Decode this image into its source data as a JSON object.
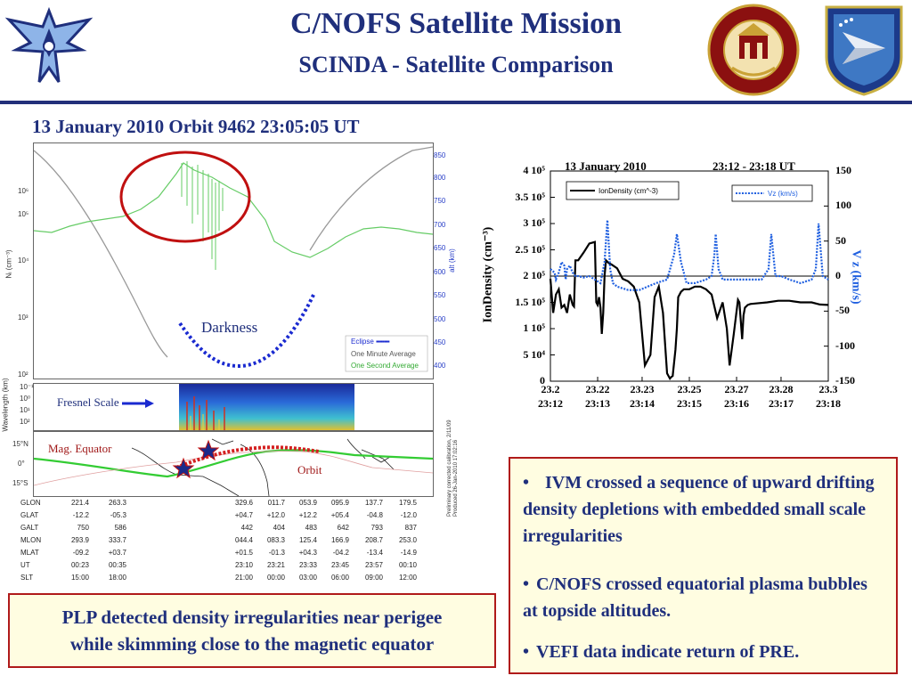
{
  "header": {
    "title": "C/NOFS Satellite Mission",
    "subtitle": "SCINDA - Satellite Comparison",
    "date_heading": "13 January 2010  Orbit 9462  23:05:05 UT"
  },
  "colors": {
    "title_blue": "#1f2f7c",
    "box_border": "#b01a1a",
    "box_fill": "#fffde1",
    "orbit_red": "#d42020",
    "eclipse_blue": "#1a2ad0",
    "one_minute_gray": "#999999",
    "one_second_green": "#55cc55"
  },
  "logos": {
    "left": "air-force-wings-logo",
    "middle": "boston-college-seal-logo",
    "right": "afrl-shield-logo"
  },
  "left_panel": {
    "y_axis_ticks": [
      "10⁶",
      "10⁵",
      "10⁴",
      "10³",
      "10²"
    ],
    "y_label": "Nᵢ (cm⁻³)",
    "alt_axis_ticks": [
      "850",
      "800",
      "750",
      "700",
      "650",
      "600",
      "550",
      "500",
      "450",
      "400"
    ],
    "alt_label": "alt (km)",
    "darkness_label": "Darkness",
    "legend": {
      "eclipse": "Eclipse",
      "one_minute": "One Minute Average",
      "one_second": "One Second Average"
    },
    "wavelength_label": "Wavelength (km)",
    "wavelength_ticks": [
      "10⁻¹",
      "10⁰",
      "10¹",
      "10²"
    ],
    "fresnel_label": "Fresnel Scale",
    "map_ticks": [
      "15°N",
      "0°",
      "15°S"
    ],
    "mag_equator_label": "Mag. Equator",
    "orbit_label": "Orbit",
    "calibration_note": [
      "Preliminary corrected calibration, 2/11/09",
      "Produced 26-Jan-2010 17:02:16"
    ],
    "table": {
      "rows": [
        {
          "name": "GLON",
          "values": [
            "221.4",
            "263.3",
            "329.6",
            "011.7",
            "053.9",
            "095.9",
            "137.7",
            "179.5"
          ]
        },
        {
          "name": "GLAT",
          "values": [
            "-12.2",
            "-05.3",
            "+04.7",
            "+12.0",
            "+12.2",
            "+05.4",
            "-04.8",
            "-12.0"
          ]
        },
        {
          "name": "GALT",
          "values": [
            "750",
            "586",
            "442",
            "404",
            "483",
            "642",
            "793",
            "837"
          ]
        },
        {
          "name": "MLON",
          "values": [
            "293.9",
            "333.7",
            "044.4",
            "083.3",
            "125.4",
            "166.9",
            "208.7",
            "253.0"
          ]
        },
        {
          "name": "MLAT",
          "values": [
            "-09.2",
            "+03.7",
            "+01.5",
            "-01.3",
            "+04.3",
            "-04.2",
            "-13.4",
            "-14.9"
          ]
        },
        {
          "name": "UT",
          "values": [
            "00:23",
            "00:35",
            "23:10",
            "23:21",
            "23:33",
            "23:45",
            "23:57",
            "00:10"
          ]
        },
        {
          "name": "SLT",
          "values": [
            "15:00",
            "18:00",
            "21:00",
            "00:00",
            "03:00",
            "06:00",
            "09:00",
            "12:00"
          ]
        }
      ]
    }
  },
  "chart_data": {
    "type": "line",
    "title": "13 January 2010",
    "time_range_label": "23:12 - 23:18 UT",
    "ylabel": "IonDensity (cm⁻³)",
    "y2label": "V z (km/s)",
    "ylim": [
      0,
      400000
    ],
    "y2lim": [
      -150,
      150
    ],
    "xlim": [
      23.2,
      23.3
    ],
    "y_ticks": [
      "4 10⁵",
      "3.5 10⁵",
      "3 10⁵",
      "2.5 10⁵",
      "2 10⁵",
      "1.5 10⁵",
      "1 10⁵",
      "5 10⁴",
      "0"
    ],
    "y_tick_values": [
      400000,
      350000,
      300000,
      250000,
      200000,
      150000,
      100000,
      50000,
      0
    ],
    "y2_ticks": [
      "150",
      "100",
      "50",
      "0",
      "-50",
      "-100",
      "-150"
    ],
    "y2_tick_values": [
      150,
      100,
      50,
      0,
      -50,
      -100,
      -150
    ],
    "x_ticks": [
      "23.2",
      "23.22",
      "23.23",
      "23.25",
      "23.27",
      "23.28",
      "23.3"
    ],
    "x_tick_values": [
      23.2,
      23.217,
      23.233,
      23.25,
      23.267,
      23.283,
      23.3
    ],
    "x_ticks_ut": [
      "23:12",
      "23:13",
      "23:14",
      "23:15",
      "23:16",
      "23:17",
      "23:18"
    ],
    "series": [
      {
        "name": "IonDensity (cm^-3)",
        "color": "#000000",
        "x": [
          23.2,
          23.201,
          23.202,
          23.203,
          23.204,
          23.205,
          23.206,
          23.207,
          23.208,
          23.2085,
          23.209,
          23.21,
          23.212,
          23.214,
          23.216,
          23.2165,
          23.217,
          23.2175,
          23.218,
          23.2185,
          23.219,
          23.2195,
          23.22,
          23.221,
          23.222,
          23.224,
          23.226,
          23.228,
          23.23,
          23.232,
          23.234,
          23.236,
          23.2375,
          23.239,
          23.2405,
          23.242,
          23.243,
          23.2435,
          23.244,
          23.245,
          23.2455,
          23.246,
          23.247,
          23.248,
          23.25,
          23.252,
          23.254,
          23.256,
          23.258,
          23.26,
          23.262,
          23.2635,
          23.2645,
          23.266,
          23.2675,
          23.268,
          23.269,
          23.2695,
          23.27,
          23.271,
          23.272,
          23.274,
          23.278,
          23.282,
          23.286,
          23.29,
          23.294,
          23.297,
          23.3
        ],
        "y": [
          195000,
          130000,
          165000,
          175000,
          140000,
          145000,
          130000,
          165000,
          145000,
          142000,
          230000,
          230000,
          245000,
          262000,
          265000,
          150000,
          145000,
          160000,
          140000,
          90000,
          130000,
          200000,
          230000,
          225000,
          222000,
          215000,
          195000,
          190000,
          180000,
          150000,
          30000,
          50000,
          160000,
          180000,
          130000,
          15000,
          5000,
          8000,
          10000,
          60000,
          100000,
          160000,
          170000,
          175000,
          175000,
          180000,
          180000,
          175000,
          165000,
          120000,
          150000,
          100000,
          30000,
          90000,
          155000,
          150000,
          80000,
          125000,
          140000,
          145000,
          147000,
          148000,
          150000,
          153000,
          153000,
          150000,
          150000,
          146000,
          145000
        ]
      },
      {
        "name": "Vz (km/s)",
        "color": "#2060e0",
        "x": [
          23.2,
          23.2015,
          23.202,
          23.203,
          23.204,
          23.205,
          23.2055,
          23.206,
          23.207,
          23.208,
          23.209,
          23.21,
          23.212,
          23.214,
          23.216,
          23.218,
          23.2195,
          23.2205,
          23.2215,
          23.2225,
          23.224,
          23.228,
          23.232,
          23.235,
          23.238,
          23.242,
          23.2445,
          23.2455,
          23.247,
          23.249,
          23.252,
          23.256,
          23.258,
          23.259,
          23.2595,
          23.2605,
          23.262,
          23.266,
          23.272,
          23.276,
          23.2785,
          23.2795,
          23.281,
          23.283,
          23.286,
          23.29,
          23.294,
          23.2955,
          23.2965,
          23.298,
          23.3
        ],
        "y": [
          10,
          5,
          -5,
          5,
          20,
          15,
          -5,
          10,
          15,
          5,
          0,
          0,
          -2,
          0,
          -5,
          -10,
          20,
          80,
          10,
          -10,
          -15,
          -20,
          -20,
          -15,
          -10,
          -5,
          30,
          60,
          20,
          -10,
          -10,
          -5,
          0,
          30,
          60,
          10,
          -5,
          -5,
          -5,
          -5,
          10,
          60,
          0,
          0,
          -5,
          -10,
          -5,
          10,
          75,
          0,
          -5
        ]
      }
    ],
    "legend": [
      {
        "label": "IonDensity (cm^-3)",
        "position": "top-left"
      },
      {
        "label": "Vz (km/s)",
        "position": "top-right"
      }
    ]
  },
  "bullets": [
    {
      "symbol": "•",
      "text": "IVM crossed a sequence of upward drifting density depletions with embedded small scale irregularities"
    },
    {
      "symbol": "•",
      "text": "C/NOFS crossed equatorial plasma bubbles at topside altitudes."
    },
    {
      "symbol": "•",
      "text": "VEFI data indicate return of PRE."
    }
  ],
  "caption": {
    "line1": "PLP detected density irregularities near perigee",
    "line2": "while skimming close to the magnetic equator"
  }
}
